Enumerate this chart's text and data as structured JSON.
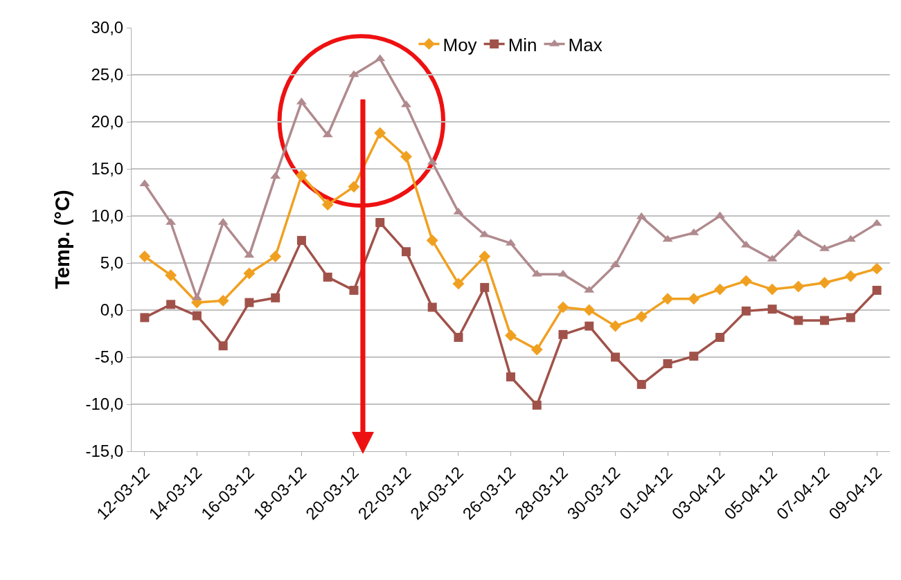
{
  "chart_data": {
    "type": "line",
    "ylabel": "Temp. (°C)",
    "categories": [
      "12-03-12",
      null,
      "14-03-12",
      null,
      "16-03-12",
      null,
      "18-03-12",
      null,
      "20-03-12",
      null,
      "22-03-12",
      null,
      "24-03-12",
      null,
      "26-03-12",
      null,
      "28-03-12",
      null,
      "30-03-12",
      null,
      "01-04-12",
      null,
      "03-04-12",
      null,
      "05-04-12",
      null,
      "07-04-12",
      null,
      "09-04-12"
    ],
    "series": [
      {
        "name": "Moy",
        "color": "#f0a020",
        "marker": "diamond",
        "values": [
          5.7,
          3.7,
          0.8,
          1.0,
          3.9,
          5.7,
          14.3,
          11.2,
          13.1,
          18.8,
          16.3,
          7.4,
          2.8,
          5.7,
          -2.7,
          -4.2,
          0.3,
          0.0,
          -1.7,
          -0.7,
          1.2,
          1.2,
          2.2,
          3.1,
          2.2,
          2.5,
          2.9,
          3.6,
          4.4
        ]
      },
      {
        "name": "Min",
        "color": "#a0524a",
        "marker": "square",
        "values": [
          -0.8,
          0.6,
          -0.6,
          -3.8,
          0.8,
          1.3,
          7.4,
          3.5,
          2.1,
          9.3,
          6.2,
          0.3,
          -2.9,
          2.4,
          -7.1,
          -10.1,
          -2.6,
          -1.7,
          -5.0,
          -7.9,
          -5.7,
          -4.9,
          -2.9,
          -0.1,
          0.1,
          -1.1,
          -1.1,
          -0.8,
          2.1
        ]
      },
      {
        "name": "Max",
        "color": "#b08a8e",
        "marker": "triangle",
        "values": [
          13.4,
          9.3,
          1.3,
          9.3,
          5.8,
          14.2,
          22.1,
          18.6,
          25.0,
          26.7,
          21.8,
          15.7,
          10.4,
          8.0,
          7.1,
          3.8,
          3.8,
          2.1,
          4.8,
          9.9,
          7.5,
          8.2,
          10.0,
          6.9,
          5.4,
          8.1,
          6.5,
          7.5,
          9.2
        ]
      }
    ],
    "ylim": [
      -15,
      30
    ],
    "yticks": [
      {
        "value": -15,
        "label": "-15,0"
      },
      {
        "value": -10,
        "label": "-10,0"
      },
      {
        "value": -5,
        "label": "-5,0"
      },
      {
        "value": 0,
        "label": "0,0"
      },
      {
        "value": 5,
        "label": "5,0"
      },
      {
        "value": 10,
        "label": "10,0"
      },
      {
        "value": 15,
        "label": "15,0"
      },
      {
        "value": 20,
        "label": "20,0"
      },
      {
        "value": 25,
        "label": "25,0"
      },
      {
        "value": 30,
        "label": "30,0"
      }
    ],
    "grid": "y",
    "legend": "top",
    "line_style": "solid"
  }
}
